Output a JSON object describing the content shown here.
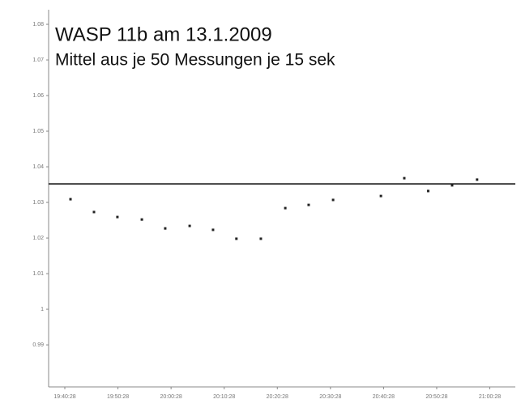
{
  "chart_data": {
    "type": "scatter",
    "title": "WASP 11b am 13.1.2009",
    "subtitle": "Mittel aus je 50 Messungen je 15 sek",
    "x": [
      1.07,
      5.49,
      9.9,
      14.5,
      18.9,
      23.5,
      27.9,
      32.3,
      36.9,
      41.5,
      45.9,
      50.5,
      59.5,
      63.9,
      68.4,
      72.9,
      77.6
    ],
    "values": [
      1.0309,
      1.0273,
      1.0259,
      1.0252,
      1.0227,
      1.0234,
      1.0223,
      1.0198,
      1.0198,
      1.0284,
      1.0293,
      1.0307,
      1.0318,
      1.0368,
      1.0332,
      1.0348,
      1.0364
    ],
    "color": "#222222",
    "reference_line": 1.0352,
    "xlim": [
      -3.05,
      84.8
    ],
    "ylim": [
      0.9782,
      1.0841
    ],
    "xticks": [
      {
        "value": 0,
        "label": "19:40:28"
      },
      {
        "value": 10,
        "label": "19:50:28"
      },
      {
        "value": 20,
        "label": "20:00:28"
      },
      {
        "value": 30,
        "label": "20:10:28"
      },
      {
        "value": 40,
        "label": "20:20:28"
      },
      {
        "value": 50,
        "label": "20:30:28"
      },
      {
        "value": 60,
        "label": "20:40:28"
      },
      {
        "value": 70,
        "label": "20:50:28"
      },
      {
        "value": 80,
        "label": "21:00:28"
      }
    ],
    "yticks": [
      1.08,
      1.07,
      1.06,
      1.05,
      1.04,
      1.03,
      1.02,
      1.01,
      1.0,
      0.99
    ],
    "grid": false
  }
}
